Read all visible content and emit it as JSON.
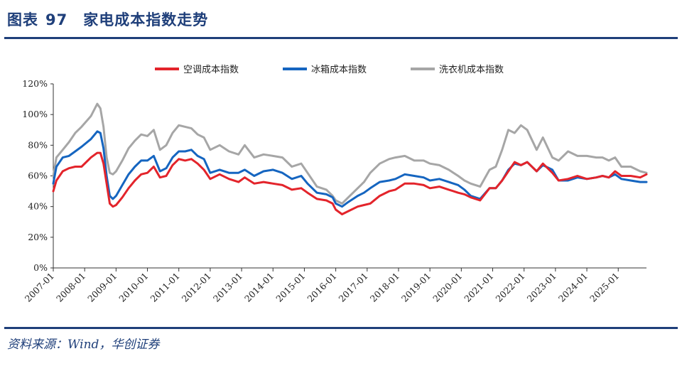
{
  "header": {
    "figure_label": "图表",
    "figure_number": "97",
    "title": "家电成本指数走势"
  },
  "footer": {
    "source": "资料来源：Wind，华创证券"
  },
  "chart_data": {
    "type": "line",
    "title": "家电成本指数走势",
    "xlabel": "",
    "ylabel": "",
    "ylim": [
      0,
      120
    ],
    "y_ticks": [
      "0%",
      "20%",
      "40%",
      "60%",
      "80%",
      "100%",
      "120%"
    ],
    "x_range": [
      2007.0,
      2025.9
    ],
    "x_ticks": [
      "2007-01",
      "2008-01",
      "2009-01",
      "2010-01",
      "2011-01",
      "2012-01",
      "2013-01",
      "2014-01",
      "2015-01",
      "2016-01",
      "2017-01",
      "2018-01",
      "2019-01",
      "2020-01",
      "2021-01",
      "2022-01",
      "2023-01",
      "2024-01",
      "2025-01"
    ],
    "grid": false,
    "legend_position": "top",
    "series": [
      {
        "name": "空调成本指数",
        "color": "#e3242b",
        "x": [
          2007.0,
          2007.1,
          2007.3,
          2007.5,
          2007.7,
          2007.9,
          2008.2,
          2008.4,
          2008.5,
          2008.6,
          2008.7,
          2008.8,
          2008.9,
          2009.0,
          2009.2,
          2009.4,
          2009.6,
          2009.8,
          2010.0,
          2010.2,
          2010.4,
          2010.6,
          2010.8,
          2011.0,
          2011.2,
          2011.4,
          2011.6,
          2011.8,
          2012.0,
          2012.3,
          2012.6,
          2012.9,
          2013.1,
          2013.4,
          2013.7,
          2014.0,
          2014.3,
          2014.6,
          2014.9,
          2015.1,
          2015.4,
          2015.7,
          2015.9,
          2016.0,
          2016.2,
          2016.4,
          2016.7,
          2016.9,
          2017.1,
          2017.4,
          2017.7,
          2017.9,
          2018.2,
          2018.5,
          2018.8,
          2019.0,
          2019.3,
          2019.6,
          2019.9,
          2020.1,
          2020.3,
          2020.6,
          2020.9,
          2021.1,
          2021.3,
          2021.5,
          2021.7,
          2021.9,
          2022.1,
          2022.4,
          2022.6,
          2022.9,
          2023.1,
          2023.4,
          2023.7,
          2024.0,
          2024.3,
          2024.5,
          2024.7,
          2024.9,
          2025.1,
          2025.4,
          2025.7,
          2025.9
        ],
        "values": [
          50,
          57,
          63,
          65,
          66,
          66,
          72,
          75,
          75,
          68,
          55,
          42,
          40,
          41,
          46,
          52,
          57,
          61,
          62,
          66,
          59,
          60,
          67,
          71,
          70,
          71,
          68,
          64,
          58,
          61,
          58,
          56,
          59,
          55,
          56,
          55,
          54,
          51,
          52,
          49,
          45,
          44,
          42,
          38,
          35,
          37,
          40,
          41,
          42,
          47,
          50,
          51,
          55,
          55,
          54,
          52,
          53,
          51,
          49,
          48,
          46,
          44,
          52,
          52,
          57,
          63,
          69,
          67,
          69,
          63,
          68,
          62,
          57,
          58,
          60,
          58,
          59,
          60,
          59,
          63,
          60,
          60,
          59,
          61
        ]
      },
      {
        "name": "冰箱成本指数",
        "color": "#1565c0",
        "x": [
          2007.0,
          2007.1,
          2007.3,
          2007.5,
          2007.7,
          2007.9,
          2008.2,
          2008.4,
          2008.5,
          2008.6,
          2008.7,
          2008.8,
          2008.9,
          2009.0,
          2009.2,
          2009.4,
          2009.6,
          2009.8,
          2010.0,
          2010.2,
          2010.4,
          2010.6,
          2010.8,
          2011.0,
          2011.2,
          2011.4,
          2011.6,
          2011.8,
          2012.0,
          2012.3,
          2012.6,
          2012.9,
          2013.1,
          2013.4,
          2013.7,
          2014.0,
          2014.3,
          2014.6,
          2014.9,
          2015.1,
          2015.4,
          2015.7,
          2015.9,
          2016.0,
          2016.2,
          2016.4,
          2016.7,
          2016.9,
          2017.1,
          2017.4,
          2017.7,
          2017.9,
          2018.2,
          2018.5,
          2018.8,
          2019.0,
          2019.3,
          2019.6,
          2019.9,
          2020.1,
          2020.3,
          2020.6,
          2020.9,
          2021.1,
          2021.3,
          2021.5,
          2021.7,
          2021.9,
          2022.1,
          2022.4,
          2022.6,
          2022.9,
          2023.1,
          2023.4,
          2023.7,
          2024.0,
          2024.3,
          2024.5,
          2024.7,
          2024.9,
          2025.1,
          2025.4,
          2025.7,
          2025.9
        ],
        "values": [
          55,
          66,
          72,
          73,
          76,
          79,
          84,
          89,
          88,
          78,
          60,
          47,
          45,
          47,
          54,
          61,
          66,
          70,
          70,
          73,
          63,
          65,
          72,
          76,
          76,
          77,
          73,
          71,
          62,
          64,
          62,
          62,
          64,
          60,
          63,
          64,
          62,
          58,
          60,
          55,
          49,
          48,
          46,
          42,
          40,
          43,
          47,
          49,
          52,
          56,
          57,
          58,
          61,
          60,
          59,
          57,
          58,
          56,
          54,
          51,
          47,
          45,
          52,
          52,
          57,
          64,
          68,
          67,
          69,
          63,
          67,
          64,
          57,
          57,
          59,
          58,
          59,
          60,
          59,
          61,
          58,
          57,
          56,
          56
        ]
      },
      {
        "name": "洗衣机成本指数",
        "color": "#a6a6a6",
        "x": [
          2007.0,
          2007.1,
          2007.3,
          2007.5,
          2007.7,
          2007.9,
          2008.2,
          2008.4,
          2008.5,
          2008.6,
          2008.7,
          2008.8,
          2008.9,
          2009.0,
          2009.2,
          2009.4,
          2009.6,
          2009.8,
          2010.0,
          2010.2,
          2010.4,
          2010.6,
          2010.8,
          2011.0,
          2011.2,
          2011.4,
          2011.6,
          2011.8,
          2012.0,
          2012.3,
          2012.6,
          2012.9,
          2013.1,
          2013.4,
          2013.7,
          2014.0,
          2014.3,
          2014.6,
          2014.9,
          2015.1,
          2015.4,
          2015.7,
          2015.9,
          2016.0,
          2016.2,
          2016.4,
          2016.7,
          2016.9,
          2017.1,
          2017.4,
          2017.7,
          2017.9,
          2018.2,
          2018.5,
          2018.8,
          2019.0,
          2019.3,
          2019.6,
          2019.9,
          2020.1,
          2020.3,
          2020.6,
          2020.9,
          2021.1,
          2021.3,
          2021.5,
          2021.7,
          2021.9,
          2022.1,
          2022.4,
          2022.6,
          2022.9,
          2023.1,
          2023.4,
          2023.7,
          2024.0,
          2024.3,
          2024.5,
          2024.7,
          2024.9,
          2025.1,
          2025.4,
          2025.7,
          2025.9
        ],
        "values": [
          60,
          72,
          77,
          82,
          88,
          92,
          99,
          107,
          104,
          92,
          72,
          62,
          61,
          63,
          70,
          78,
          83,
          87,
          86,
          90,
          77,
          80,
          88,
          93,
          92,
          91,
          87,
          85,
          77,
          80,
          76,
          74,
          80,
          72,
          74,
          73,
          72,
          66,
          68,
          62,
          53,
          51,
          47,
          44,
          42,
          46,
          52,
          56,
          62,
          68,
          71,
          72,
          73,
          70,
          70,
          68,
          67,
          64,
          60,
          57,
          55,
          53,
          64,
          66,
          77,
          90,
          88,
          93,
          90,
          77,
          85,
          72,
          70,
          76,
          73,
          73,
          72,
          72,
          70,
          72,
          66,
          66,
          63,
          62
        ]
      }
    ]
  }
}
